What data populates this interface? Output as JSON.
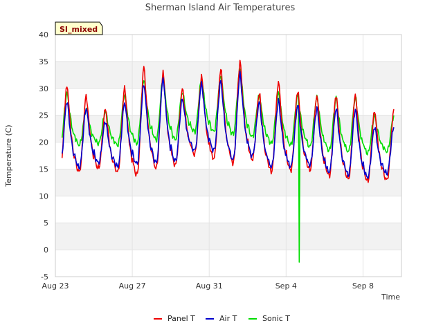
{
  "chart_data": {
    "type": "line",
    "title": "Sherman Island Air Temperatures",
    "badge": "SI_mixed",
    "xlabel": "Time",
    "ylabel": "Temperature (C)",
    "ylim": [
      -5,
      40
    ],
    "yticks": [
      -5,
      0,
      5,
      10,
      15,
      20,
      25,
      30,
      35,
      40
    ],
    "xlim": [
      "2023-08-23",
      "2023-09-10"
    ],
    "xticks": [
      {
        "date": "2023-08-23",
        "label": "Aug 23"
      },
      {
        "date": "2023-08-27",
        "label": "Aug 27"
      },
      {
        "date": "2023-08-31",
        "label": "Aug 31"
      },
      {
        "date": "2023-09-04",
        "label": "Sep 4"
      },
      {
        "date": "2023-09-08",
        "label": "Sep 8"
      }
    ],
    "grid": true,
    "legend_position": "bottom-center",
    "days": [
      "2023-08-23",
      "2023-08-24",
      "2023-08-25",
      "2023-08-26",
      "2023-08-27",
      "2023-08-28",
      "2023-08-29",
      "2023-08-30",
      "2023-08-31",
      "2023-09-01",
      "2023-09-02",
      "2023-09-03",
      "2023-09-04",
      "2023-09-05",
      "2023-09-06",
      "2023-09-07",
      "2023-09-08",
      "2023-09-09"
    ],
    "series": [
      {
        "name": "Panel T",
        "color": "#ee0000",
        "daily_max": [
          30.8,
          28.8,
          26.3,
          30.2,
          34.2,
          33.0,
          30.0,
          32.3,
          33.8,
          35.2,
          29.3,
          31.5,
          29.8,
          28.9,
          29.0,
          29.1,
          26.0,
          26.0
        ],
        "daily_min": [
          14.0,
          14.5,
          15.2,
          14.5,
          14.0,
          15.2,
          15.8,
          17.8,
          17.0,
          16.2,
          16.8,
          14.6,
          14.8,
          14.8,
          13.8,
          13.2,
          12.8,
          13.0
        ]
      },
      {
        "name": "Air T",
        "color": "#0000cc",
        "daily_max": [
          27.8,
          26.5,
          24.0,
          27.5,
          31.0,
          32.0,
          28.2,
          31.0,
          31.5,
          32.8,
          27.5,
          27.8,
          27.0,
          26.5,
          26.5,
          26.3,
          23.0,
          23.0
        ],
        "daily_min": [
          15.3,
          15.3,
          16.2,
          15.5,
          16.0,
          16.2,
          16.5,
          18.5,
          18.5,
          16.8,
          17.5,
          15.5,
          15.5,
          15.8,
          14.5,
          14.0,
          13.5,
          14.2
        ]
      },
      {
        "name": "Sonic T",
        "color": "#00dd00",
        "daily_max": [
          29.2,
          26.2,
          25.8,
          29.0,
          31.8,
          32.2,
          29.5,
          31.8,
          32.5,
          33.8,
          28.8,
          29.3,
          28.8,
          28.5,
          28.3,
          28.5,
          25.0,
          25.0
        ],
        "daily_min": [
          19.3,
          19.5,
          19.8,
          19.5,
          19.8,
          20.5,
          20.5,
          22.0,
          22.0,
          21.5,
          21.0,
          19.8,
          19.5,
          19.2,
          18.5,
          18.3,
          18.0,
          18.3
        ],
        "anomaly": {
          "date": "2023-09-04",
          "value": -2.3
        }
      }
    ]
  }
}
